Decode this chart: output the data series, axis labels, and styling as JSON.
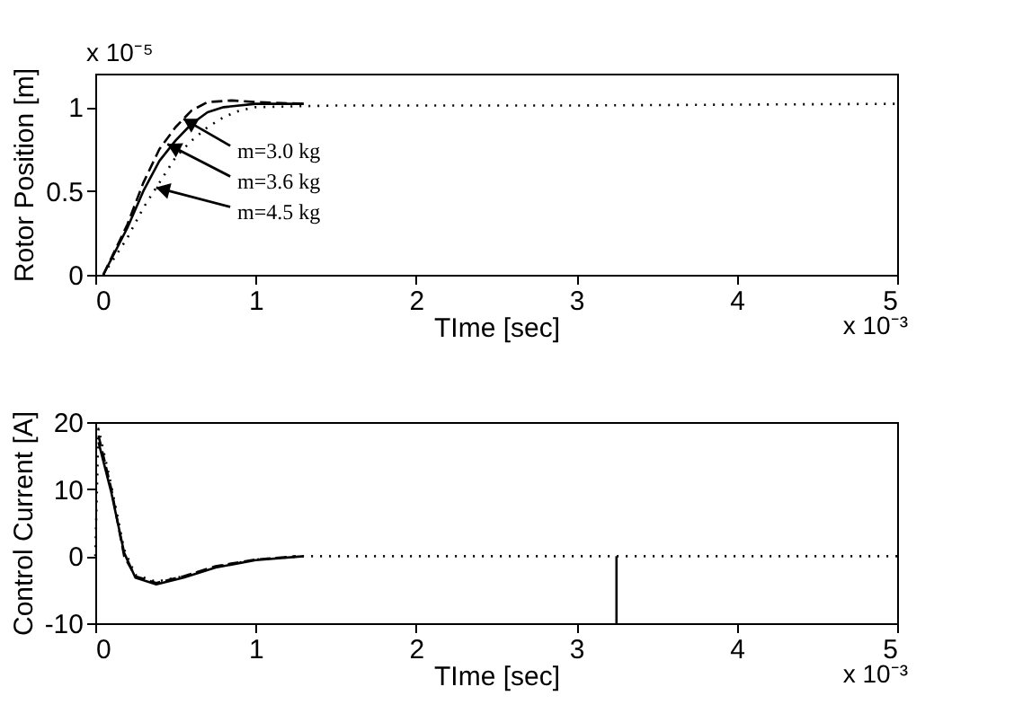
{
  "chart_data": [
    {
      "type": "line",
      "xlabel": "TIme [sec]",
      "ylabel": "Rotor Position [m]",
      "xlim": [
        0,
        5
      ],
      "xticks": [
        0,
        1,
        2,
        3,
        4,
        5
      ],
      "ylim": [
        0,
        1.2
      ],
      "yticks": [
        0,
        0.5,
        1
      ],
      "grid": false,
      "series": [
        {
          "color": "#000000",
          "line_style": "dashed",
          "x": [
            0.05,
            0.1,
            0.2,
            0.3,
            0.4,
            0.5,
            0.6,
            0.7,
            0.85,
            1.0,
            1.3
          ],
          "values": [
            0.0,
            0.1,
            0.3,
            0.55,
            0.75,
            0.88,
            0.98,
            1.03,
            1.04,
            1.03,
            1.02
          ]
        },
        {
          "color": "#000000",
          "line_style": "solid",
          "x": [
            0.05,
            0.2,
            0.3,
            0.4,
            0.5,
            0.6,
            0.7,
            0.8,
            1.0,
            1.3
          ],
          "values": [
            0.0,
            0.28,
            0.5,
            0.68,
            0.8,
            0.9,
            0.97,
            1.0,
            1.02,
            1.02
          ]
        },
        {
          "color": "#000000",
          "line_style": "dotted",
          "x": [
            0.05,
            0.2,
            0.3,
            0.4,
            0.5,
            0.6,
            0.7,
            0.8,
            0.9,
            1.0,
            1.5,
            3.0,
            5.0
          ],
          "values": [
            0.0,
            0.22,
            0.4,
            0.55,
            0.7,
            0.8,
            0.88,
            0.94,
            0.98,
            1.0,
            1.01,
            1.01,
            1.02
          ]
        }
      ],
      "annotations": [
        {
          "text": "m=3.0 kg",
          "x": 0.55,
          "y": 0.93
        },
        {
          "text": "m=3.6 kg",
          "x": 0.45,
          "y": 0.78
        },
        {
          "text": "m=4.5 kg",
          "x": 0.38,
          "y": 0.52
        },
        "x 10⁻⁵",
        "x 10⁻³"
      ]
    },
    {
      "type": "line",
      "xlabel": "TIme [sec]",
      "ylabel": "Control Current [A]",
      "xlim": [
        0,
        5
      ],
      "xticks": [
        0,
        1,
        2,
        3,
        4,
        5
      ],
      "ylim": [
        -10,
        20
      ],
      "yticks": [
        -10,
        0,
        10,
        20
      ],
      "grid": false,
      "series": [
        {
          "color": "#000000",
          "line_style": "dashed",
          "x": [
            0.02,
            0.1,
            0.18,
            0.25,
            0.38,
            0.55,
            0.75,
            1.0,
            1.25
          ],
          "values": [
            18,
            10,
            0,
            -3,
            -4,
            -3,
            -1.5,
            -0.5,
            0
          ]
        },
        {
          "color": "#000000",
          "line_style": "solid",
          "x": [
            0.02,
            0.1,
            0.18,
            0.25,
            0.38,
            0.55,
            0.75,
            1.0,
            1.3
          ],
          "values": [
            17,
            9.5,
            0.5,
            -3.2,
            -4.2,
            -3.2,
            -1.7,
            -0.6,
            0
          ]
        },
        {
          "color": "#000000",
          "line_style": "dotted",
          "x": [
            0.0,
            0.02,
            0.1,
            0.18,
            0.25,
            0.38,
            0.55,
            0.75,
            1.0,
            1.3,
            5.0
          ],
          "values": [
            0,
            19,
            10.5,
            1,
            -2.8,
            -3.8,
            -3,
            -1.6,
            -0.5,
            0,
            0
          ]
        },
        {
          "color": "#000000",
          "line_style": "solid",
          "x": [
            3.25,
            3.25
          ],
          "values": [
            0,
            -10
          ]
        }
      ],
      "annotations": [
        "x 10⁻³"
      ]
    }
  ]
}
